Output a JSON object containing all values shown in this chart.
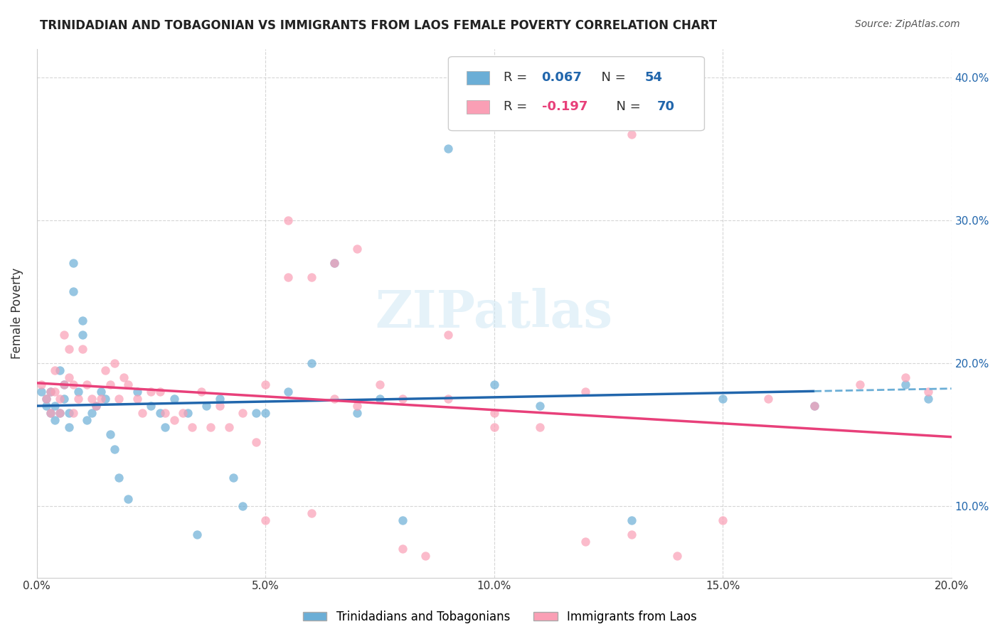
{
  "title": "TRINIDADIAN AND TOBAGONIAN VS IMMIGRANTS FROM LAOS FEMALE POVERTY CORRELATION CHART",
  "source": "Source: ZipAtlas.com",
  "xlabel_ticks": [
    "0.0%",
    "5.0%",
    "10.0%",
    "15.0%",
    "20.0%"
  ],
  "ylabel_ticks": [
    "10.0%",
    "20.0%",
    "30.0%",
    "40.0%"
  ],
  "ylabel_label": "Female Poverty",
  "legend_entries": [
    {
      "label": "R = 0.067   N = 54",
      "color": "#a8c4e0"
    },
    {
      "label": "R = -0.197   N = 70",
      "color": "#f4a7b9"
    }
  ],
  "legend_bottom": [
    "Trinidadians and Tobagonians",
    "Immigrants from Laos"
  ],
  "blue_color": "#6baed6",
  "pink_color": "#fa9fb5",
  "blue_line_color": "#2166ac",
  "pink_line_color": "#e8407a",
  "blue_dash_color": "#6baed6",
  "watermark": "ZIPatlas",
  "R_blue": 0.067,
  "N_blue": 54,
  "R_pink": -0.197,
  "N_pink": 70,
  "xmin": 0.0,
  "xmax": 0.2,
  "ymin": 0.05,
  "ymax": 0.42,
  "blue_scatter_x": [
    0.001,
    0.002,
    0.002,
    0.003,
    0.003,
    0.004,
    0.004,
    0.005,
    0.005,
    0.006,
    0.006,
    0.007,
    0.007,
    0.008,
    0.008,
    0.009,
    0.01,
    0.01,
    0.011,
    0.012,
    0.013,
    0.014,
    0.015,
    0.016,
    0.017,
    0.018,
    0.02,
    0.022,
    0.025,
    0.027,
    0.028,
    0.03,
    0.033,
    0.035,
    0.037,
    0.04,
    0.043,
    0.045,
    0.048,
    0.05,
    0.055,
    0.06,
    0.065,
    0.07,
    0.075,
    0.08,
    0.09,
    0.1,
    0.11,
    0.13,
    0.15,
    0.17,
    0.19,
    0.195
  ],
  "blue_scatter_y": [
    0.18,
    0.17,
    0.175,
    0.165,
    0.18,
    0.17,
    0.16,
    0.195,
    0.165,
    0.185,
    0.175,
    0.165,
    0.155,
    0.27,
    0.25,
    0.18,
    0.23,
    0.22,
    0.16,
    0.165,
    0.17,
    0.18,
    0.175,
    0.15,
    0.14,
    0.12,
    0.105,
    0.18,
    0.17,
    0.165,
    0.155,
    0.175,
    0.165,
    0.08,
    0.17,
    0.175,
    0.12,
    0.1,
    0.165,
    0.165,
    0.18,
    0.2,
    0.27,
    0.165,
    0.175,
    0.09,
    0.35,
    0.185,
    0.17,
    0.09,
    0.175,
    0.17,
    0.185,
    0.175
  ],
  "pink_scatter_x": [
    0.001,
    0.002,
    0.003,
    0.003,
    0.004,
    0.004,
    0.005,
    0.005,
    0.006,
    0.006,
    0.007,
    0.007,
    0.008,
    0.008,
    0.009,
    0.01,
    0.011,
    0.012,
    0.013,
    0.014,
    0.015,
    0.016,
    0.017,
    0.018,
    0.019,
    0.02,
    0.022,
    0.023,
    0.025,
    0.027,
    0.028,
    0.03,
    0.032,
    0.034,
    0.036,
    0.038,
    0.04,
    0.042,
    0.045,
    0.048,
    0.05,
    0.055,
    0.06,
    0.065,
    0.07,
    0.075,
    0.08,
    0.085,
    0.09,
    0.1,
    0.11,
    0.12,
    0.13,
    0.14,
    0.15,
    0.16,
    0.17,
    0.18,
    0.19,
    0.195,
    0.05,
    0.06,
    0.1,
    0.12,
    0.13,
    0.09,
    0.08,
    0.07,
    0.065,
    0.055
  ],
  "pink_scatter_y": [
    0.185,
    0.175,
    0.18,
    0.165,
    0.195,
    0.18,
    0.175,
    0.165,
    0.22,
    0.185,
    0.21,
    0.19,
    0.185,
    0.165,
    0.175,
    0.21,
    0.185,
    0.175,
    0.17,
    0.175,
    0.195,
    0.185,
    0.2,
    0.175,
    0.19,
    0.185,
    0.175,
    0.165,
    0.18,
    0.18,
    0.165,
    0.16,
    0.165,
    0.155,
    0.18,
    0.155,
    0.17,
    0.155,
    0.165,
    0.145,
    0.185,
    0.3,
    0.26,
    0.175,
    0.17,
    0.185,
    0.07,
    0.065,
    0.175,
    0.165,
    0.155,
    0.075,
    0.08,
    0.065,
    0.09,
    0.175,
    0.17,
    0.185,
    0.19,
    0.18,
    0.09,
    0.095,
    0.155,
    0.18,
    0.36,
    0.22,
    0.175,
    0.28,
    0.27,
    0.26
  ]
}
